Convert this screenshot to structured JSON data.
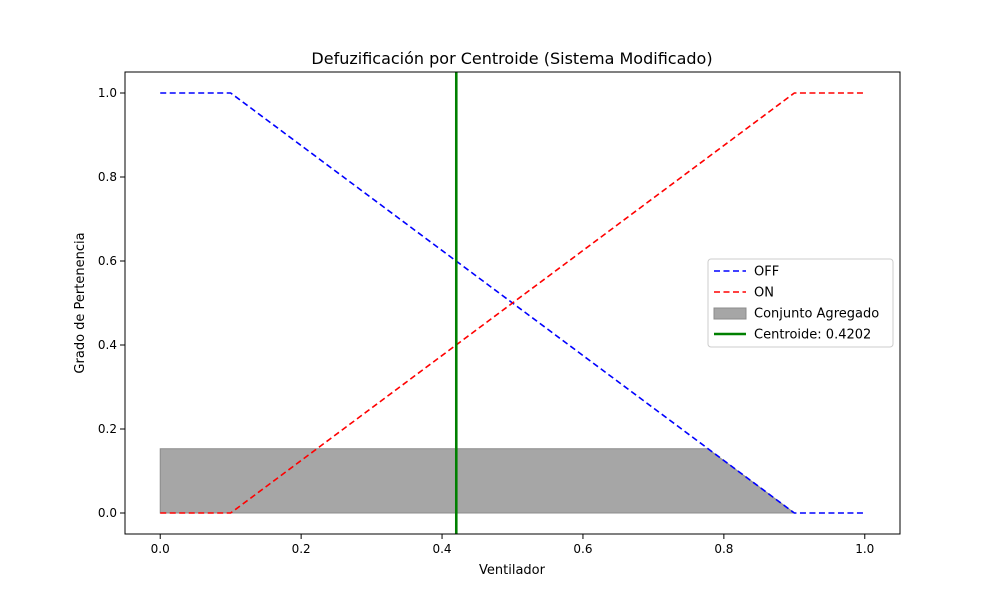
{
  "chart_data": {
    "type": "line",
    "title": "Defuzificación por Centroide (Sistema Modificado)",
    "xlabel": "Ventilador",
    "ylabel": "Grado de Pertenencia",
    "xlim": [
      -0.05,
      1.05
    ],
    "ylim": [
      -0.05,
      1.05
    ],
    "x_ticks": [
      0.0,
      0.2,
      0.4,
      0.6,
      0.8,
      1.0
    ],
    "x_tick_labels": [
      "0.0",
      "0.2",
      "0.4",
      "0.6",
      "0.8",
      "1.0"
    ],
    "y_ticks": [
      0.0,
      0.2,
      0.4,
      0.6,
      0.8,
      1.0
    ],
    "y_tick_labels": [
      "0.0",
      "0.2",
      "0.4",
      "0.6",
      "0.8",
      "1.0"
    ],
    "grid": false,
    "legend_position": "center-right",
    "series": [
      {
        "name": "OFF",
        "style": "dashed",
        "color": "#0000ff",
        "x": [
          0.0,
          0.1,
          0.9,
          1.0
        ],
        "y": [
          1.0,
          1.0,
          0.0,
          0.0
        ]
      },
      {
        "name": "ON",
        "style": "dashed",
        "color": "#ff0000",
        "x": [
          0.0,
          0.1,
          0.9,
          1.0
        ],
        "y": [
          0.0,
          0.0,
          1.0,
          1.0
        ]
      }
    ],
    "aggregated_set": {
      "name": "Conjunto Agregado",
      "color": "#a6a6a6",
      "x": [
        0.0,
        0.777,
        0.9
      ],
      "y": [
        0.153,
        0.153,
        0.0
      ]
    },
    "centroid": {
      "name": "Centroide: 0.4202",
      "x": 0.4202,
      "color": "#008000"
    }
  }
}
